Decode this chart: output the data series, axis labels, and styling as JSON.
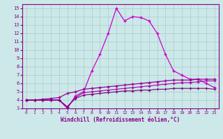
{
  "x_values": [
    0,
    1,
    2,
    3,
    4,
    5,
    6,
    7,
    8,
    9,
    10,
    11,
    12,
    13,
    14,
    15,
    16,
    17,
    18,
    19,
    20,
    21,
    22,
    23
  ],
  "line1": [
    4,
    4,
    4,
    4,
    4,
    3,
    4.5,
    5,
    7.5,
    9.5,
    12,
    15,
    13.5,
    14,
    13.9,
    13.5,
    12,
    9.5,
    7.5,
    7,
    6.5,
    6.5,
    6,
    5.5
  ],
  "line2": [
    4,
    4,
    4.1,
    4.2,
    4.3,
    4.8,
    5.0,
    5.3,
    5.4,
    5.5,
    5.6,
    5.7,
    5.8,
    5.9,
    6.0,
    6.1,
    6.2,
    6.3,
    6.4,
    6.4,
    6.4,
    6.5,
    6.5,
    6.5
  ],
  "line3": [
    4,
    4,
    4,
    4,
    4,
    3.2,
    4.3,
    4.9,
    5.0,
    5.1,
    5.2,
    5.3,
    5.4,
    5.5,
    5.6,
    5.7,
    5.8,
    5.9,
    6.0,
    6.1,
    6.1,
    6.2,
    6.3,
    6.3
  ],
  "line4": [
    4,
    4,
    4,
    4,
    4,
    3.2,
    4.2,
    4.6,
    4.7,
    4.8,
    4.9,
    5.0,
    5.1,
    5.1,
    5.2,
    5.2,
    5.3,
    5.3,
    5.4,
    5.4,
    5.4,
    5.4,
    5.4,
    5.3
  ],
  "line_color1": "#cc00cc",
  "line_color2": "#990099",
  "line_color3": "#aa00aa",
  "line_color4": "#770077",
  "bg_color": "#cce8e8",
  "grid_color": "#aacccc",
  "xlabel": "Windchill (Refroidissement éolien,°C)",
  "xlim_min": -0.5,
  "xlim_max": 23.5,
  "ylim_min": 3,
  "ylim_max": 15.5,
  "xticks": [
    0,
    1,
    2,
    3,
    4,
    5,
    6,
    7,
    8,
    9,
    10,
    11,
    12,
    13,
    14,
    15,
    16,
    17,
    18,
    19,
    20,
    21,
    22,
    23
  ],
  "yticks": [
    3,
    4,
    5,
    6,
    7,
    8,
    9,
    10,
    11,
    12,
    13,
    14,
    15
  ],
  "tick_color": "#880088",
  "spine_color": "#880088"
}
